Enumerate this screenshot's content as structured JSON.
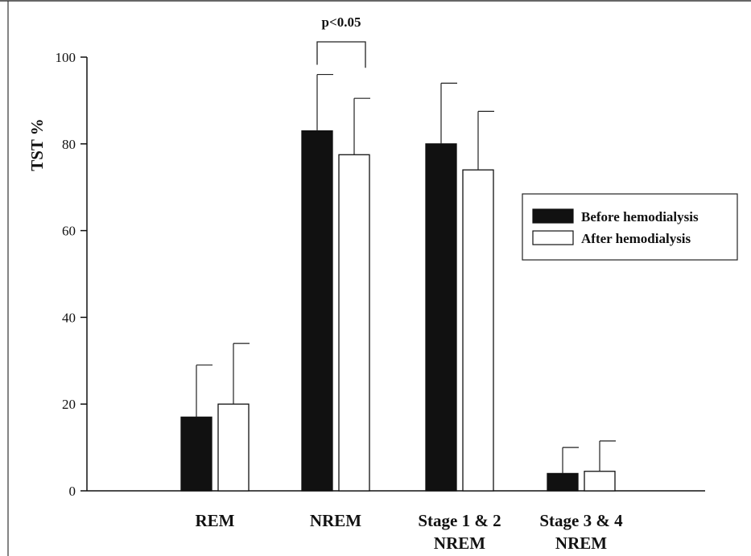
{
  "chart_data": {
    "type": "bar",
    "ylabel": "TST %",
    "xlabel": "",
    "ylim": [
      0,
      100
    ],
    "yticks": [
      0,
      20,
      40,
      60,
      80,
      100
    ],
    "ytick_labels": [
      "0",
      "20",
      "40",
      "60",
      "80",
      "100"
    ],
    "categories": [
      [
        "REM"
      ],
      [
        "NREM"
      ],
      [
        "Stage 1 & 2",
        "NREM"
      ],
      [
        "Stage 3 & 4",
        "NREM"
      ]
    ],
    "series": [
      {
        "name": "Before hemodialysis",
        "values": [
          17,
          83,
          80,
          4
        ],
        "errors": [
          12,
          13,
          14,
          6
        ],
        "color": "#111111"
      },
      {
        "name": "After hemodialysis",
        "values": [
          20,
          77.5,
          74,
          4.5
        ],
        "errors": [
          14,
          13,
          13.5,
          7
        ],
        "color": "#ffffff"
      }
    ],
    "annotation": {
      "text": "p<0.05",
      "category_index": 1
    },
    "legend_position": "right",
    "grid": false
  }
}
